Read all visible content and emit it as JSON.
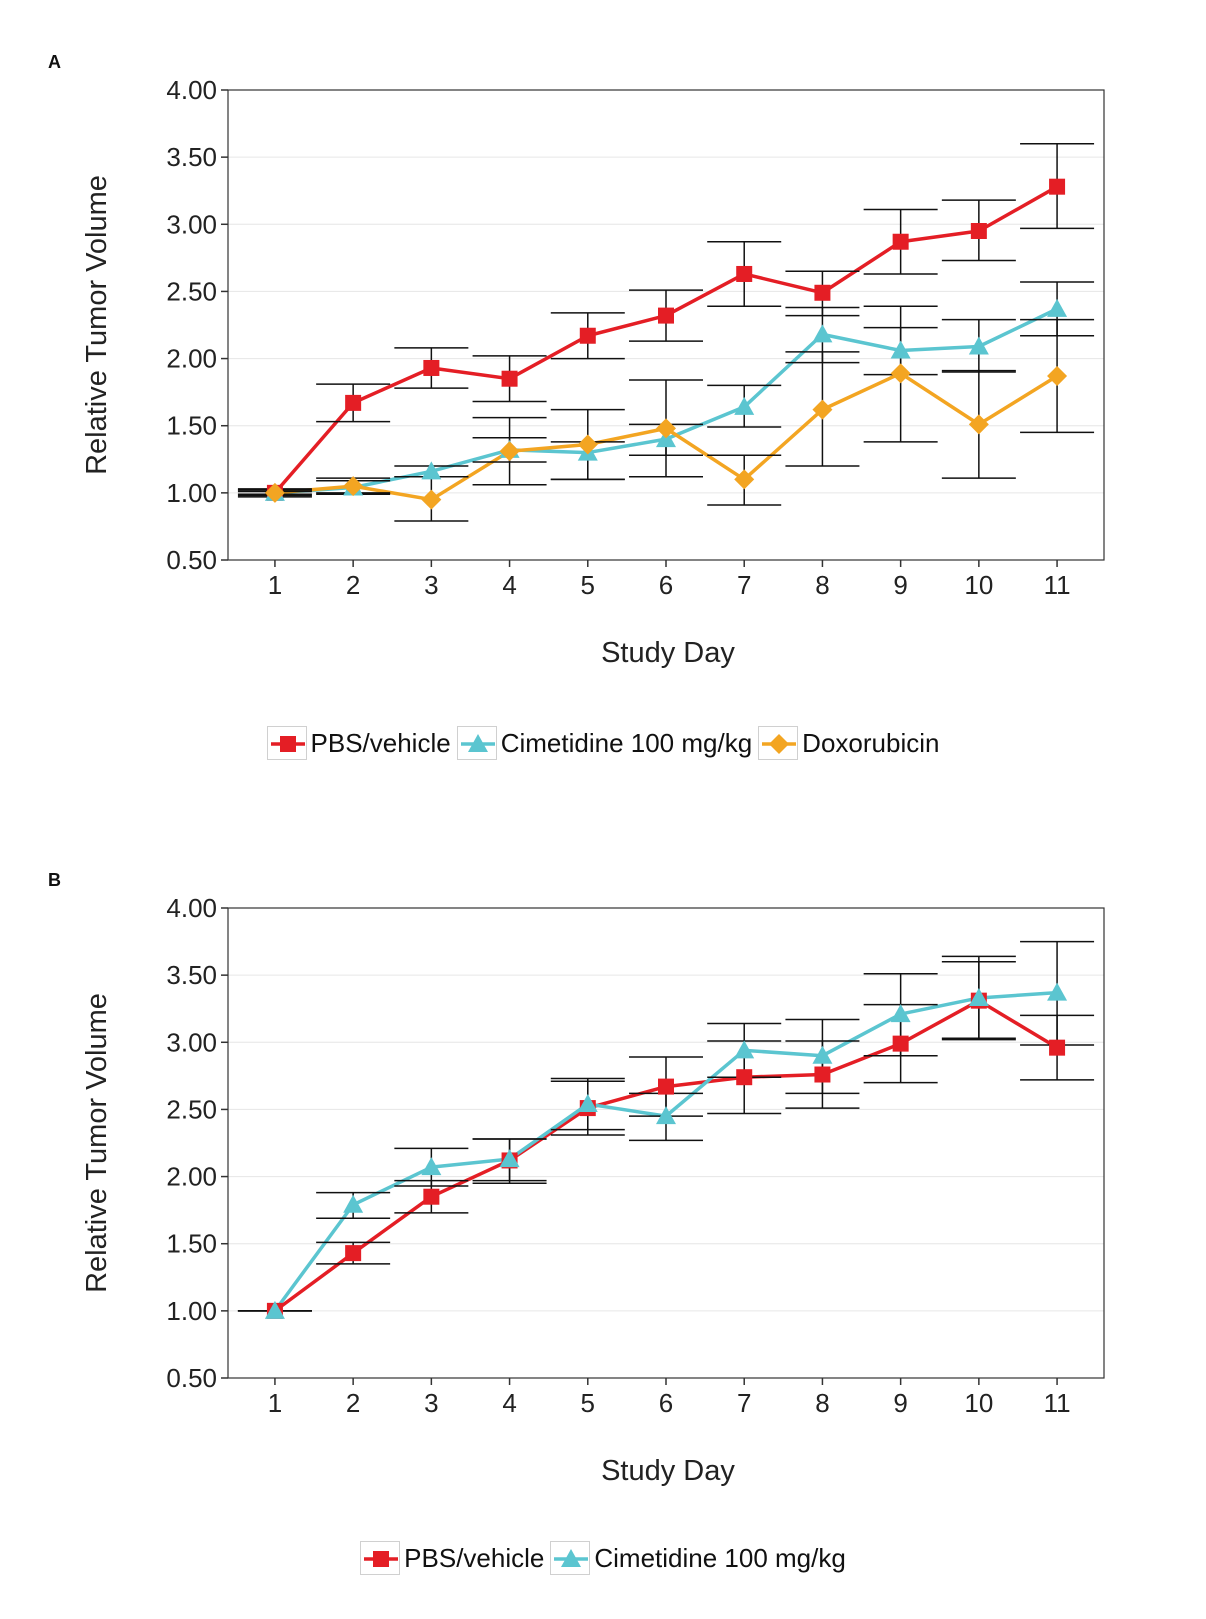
{
  "chart_data": [
    {
      "panel": "A",
      "type": "line",
      "xlabel": "Study Day",
      "ylabel": "Relative Tumor Volume",
      "ylim": [
        0.5,
        4.0
      ],
      "x": [
        1,
        2,
        3,
        4,
        5,
        6,
        7,
        8,
        9,
        10,
        11
      ],
      "x_tick_labels": [
        "1",
        "2",
        "3",
        "4",
        "5",
        "6",
        "7",
        "8",
        "9",
        "10",
        "11"
      ],
      "y_tick_labels": [
        "0.50",
        "1.00",
        "1.50",
        "2.00",
        "2.50",
        "3.00",
        "3.50",
        "4.00"
      ],
      "grid": "horizontal",
      "legend_position": "bottom",
      "series": [
        {
          "name": "PBS/vehicle",
          "color": "#e41e25",
          "marker": "square",
          "values": [
            1.0,
            1.67,
            1.93,
            1.85,
            2.17,
            2.32,
            2.63,
            2.49,
            2.87,
            2.95,
            3.28
          ],
          "err_low": [
            0.98,
            1.53,
            1.78,
            1.68,
            2.0,
            2.13,
            2.39,
            2.32,
            2.63,
            2.73,
            2.97
          ],
          "err_high": [
            1.02,
            1.81,
            2.08,
            2.02,
            2.34,
            2.51,
            2.87,
            2.65,
            3.11,
            3.18,
            3.6
          ]
        },
        {
          "name": "Cimetidine 100 mg/kg",
          "color": "#5bc5d0",
          "marker": "triangle",
          "values": [
            1.0,
            1.04,
            1.16,
            1.32,
            1.3,
            1.4,
            1.64,
            2.18,
            2.06,
            2.09,
            2.37
          ],
          "err_low": [
            0.97,
            0.99,
            1.12,
            1.23,
            1.1,
            1.28,
            1.49,
            1.97,
            1.88,
            1.9,
            2.17
          ],
          "err_high": [
            1.03,
            1.09,
            1.2,
            1.41,
            1.38,
            1.51,
            1.8,
            2.38,
            2.23,
            2.29,
            2.57
          ]
        },
        {
          "name": "Doxorubicin",
          "color": "#f3a522",
          "marker": "diamond",
          "values": [
            1.0,
            1.05,
            0.95,
            1.31,
            1.36,
            1.48,
            1.1,
            1.62,
            1.89,
            1.51,
            1.87
          ],
          "err_low": [
            0.99,
            1.0,
            0.79,
            1.06,
            1.1,
            1.12,
            0.91,
            1.2,
            1.38,
            1.11,
            1.45
          ],
          "err_high": [
            1.01,
            1.11,
            1.12,
            1.56,
            1.62,
            1.84,
            1.28,
            2.05,
            2.39,
            1.91,
            2.29
          ]
        }
      ]
    },
    {
      "panel": "B",
      "type": "line",
      "xlabel": "Study Day",
      "ylabel": "Relative Tumor Volume",
      "ylim": [
        0.5,
        4.0
      ],
      "x": [
        1,
        2,
        3,
        4,
        5,
        6,
        7,
        8,
        9,
        10,
        11
      ],
      "x_tick_labels": [
        "1",
        "2",
        "3",
        "4",
        "5",
        "6",
        "7",
        "8",
        "9",
        "10",
        "11"
      ],
      "y_tick_labels": [
        "0.50",
        "1.00",
        "1.50",
        "2.00",
        "2.50",
        "3.00",
        "3.50",
        "4.00"
      ],
      "grid": "horizontal",
      "legend_position": "bottom",
      "series": [
        {
          "name": "PBS/vehicle",
          "color": "#e41e25",
          "marker": "square",
          "values": [
            1.0,
            1.43,
            1.85,
            2.12,
            2.51,
            2.67,
            2.74,
            2.76,
            2.99,
            3.31,
            2.96
          ],
          "err_low": [
            1.0,
            1.35,
            1.73,
            1.95,
            2.31,
            2.45,
            2.47,
            2.51,
            2.7,
            3.02,
            2.72
          ],
          "err_high": [
            1.0,
            1.51,
            1.97,
            2.28,
            2.71,
            2.89,
            3.01,
            3.01,
            3.28,
            3.6,
            3.2
          ]
        },
        {
          "name": "Cimetidine 100 mg/kg",
          "color": "#5bc5d0",
          "marker": "triangle",
          "values": [
            1.0,
            1.79,
            2.07,
            2.13,
            2.54,
            2.45,
            2.94,
            2.9,
            3.21,
            3.33,
            3.37
          ],
          "err_low": [
            1.0,
            1.69,
            1.93,
            1.97,
            2.35,
            2.27,
            2.74,
            2.62,
            2.9,
            3.03,
            2.98
          ],
          "err_high": [
            1.0,
            1.88,
            2.21,
            2.28,
            2.73,
            2.62,
            3.14,
            3.17,
            3.51,
            3.64,
            3.75
          ]
        }
      ]
    }
  ]
}
